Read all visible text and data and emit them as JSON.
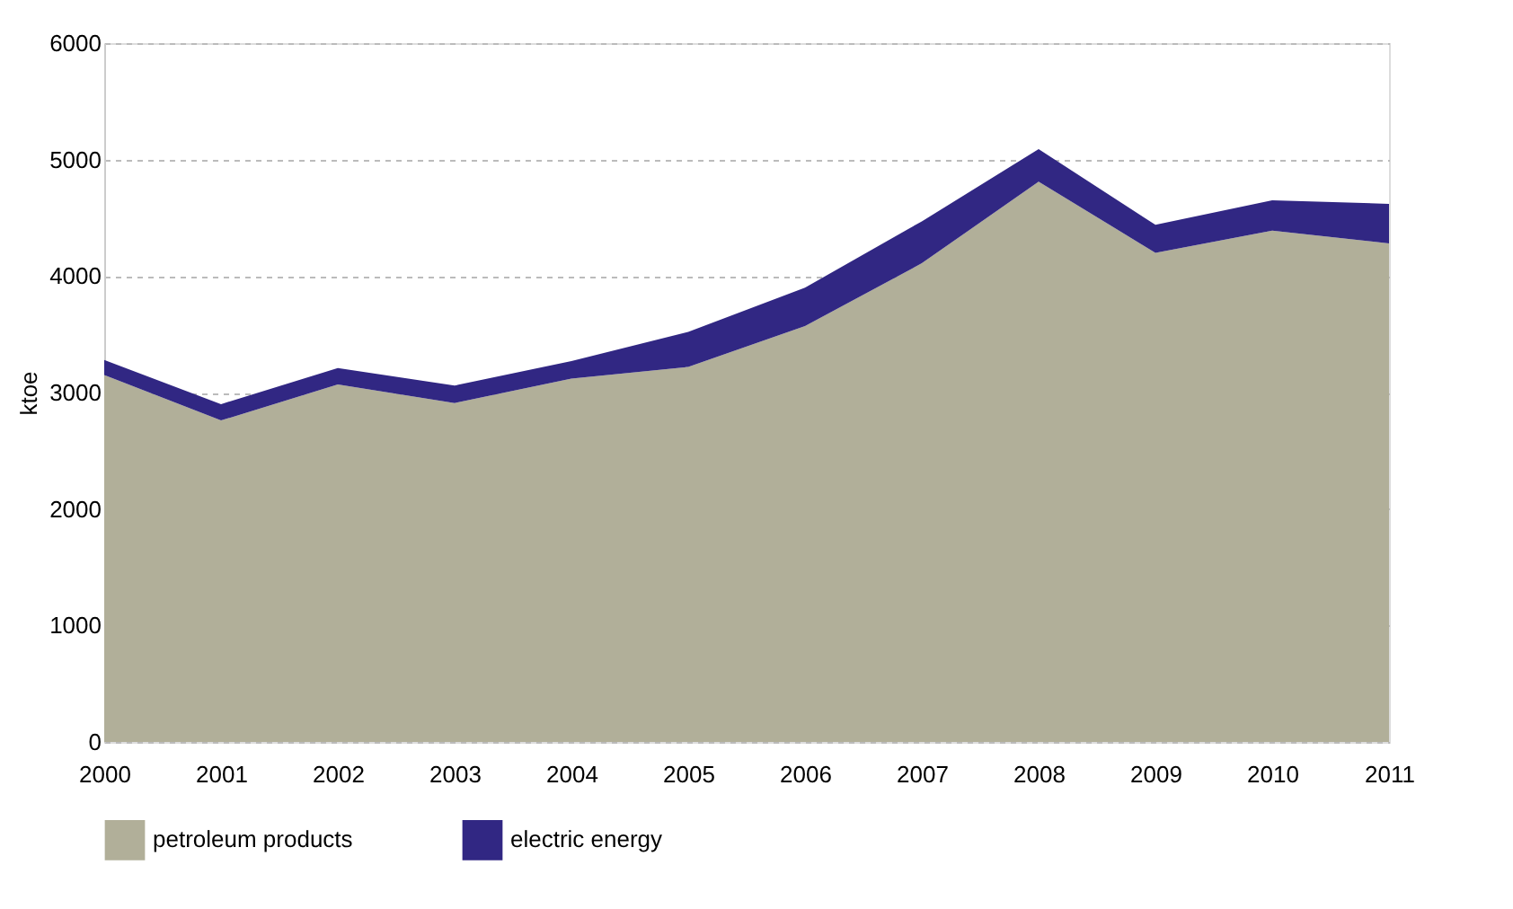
{
  "chart_data": {
    "type": "area",
    "stacked": true,
    "ylabel": "ktoe",
    "x": [
      2000,
      2001,
      2002,
      2003,
      2004,
      2005,
      2006,
      2007,
      2008,
      2009,
      2010,
      2011
    ],
    "series": [
      {
        "name": "petroleum products",
        "color": "#b1af99",
        "values": [
          3150,
          2760,
          3070,
          2910,
          3120,
          3220,
          3570,
          4110,
          4810,
          4200,
          4390,
          4280
        ]
      },
      {
        "name": "electric energy",
        "color": "#312783",
        "values": [
          130,
          140,
          140,
          150,
          150,
          300,
          330,
          360,
          280,
          240,
          260,
          340
        ]
      }
    ],
    "xlim": [
      2000,
      2011
    ],
    "xticks": [
      2000,
      2001,
      2002,
      2003,
      2004,
      2005,
      2006,
      2007,
      2008,
      2009,
      2010,
      2011
    ],
    "ylim": [
      0,
      6000
    ],
    "yticks": [
      0,
      1000,
      2000,
      3000,
      4000,
      5000,
      6000
    ],
    "grid": "y",
    "legend": "bottom"
  }
}
